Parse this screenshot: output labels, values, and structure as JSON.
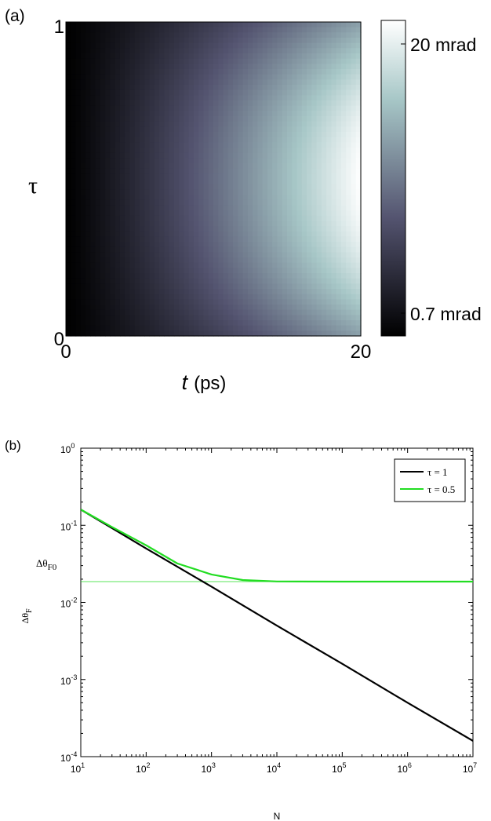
{
  "chart_data": [
    {
      "type": "heatmap",
      "panel_label": "(a)",
      "xlabel_var": "t",
      "xlabel_unit": "(ps)",
      "ylabel": "τ",
      "x_ticks": [
        "0",
        "20"
      ],
      "y_ticks": [
        "0",
        "1"
      ],
      "xlim": [
        0,
        20
      ],
      "ylim": [
        0,
        1
      ],
      "colorbar": {
        "max_label": "20 mrad",
        "min_label": "0.7 mrad",
        "range": [
          0.7,
          20
        ]
      },
      "colormap": "bone",
      "value_model": "Increases with t; maximum at τ = 0.5 and t = 20"
    },
    {
      "type": "line",
      "panel_label": "(b)",
      "xlabel": "N",
      "ylabel_main": "Δθ",
      "ylabel_sub": "F",
      "x_scale": "log",
      "y_scale": "log",
      "xlim": [
        10,
        10000000
      ],
      "ylim": [
        0.0001,
        1
      ],
      "x_tick_exponents": [
        "1",
        "2",
        "3",
        "4",
        "5",
        "6",
        "7"
      ],
      "y_tick_exponents": [
        "0",
        "-1",
        "-2",
        "-3",
        "-4"
      ],
      "tick_base": "10",
      "series": [
        {
          "name": "τ = 1",
          "color": "#000000",
          "x": [
            10,
            100,
            1000,
            10000,
            100000,
            1000000,
            10000000
          ],
          "y": [
            0.16,
            0.05,
            0.016,
            0.005,
            0.0016,
            0.0005,
            0.00016
          ]
        },
        {
          "name": "τ = 0.5",
          "color": "#22dd22",
          "x": [
            10,
            30,
            100,
            300,
            1000,
            3000,
            10000,
            100000,
            1000000,
            10000000
          ],
          "y": [
            0.16,
            0.095,
            0.055,
            0.032,
            0.023,
            0.0195,
            0.0187,
            0.0186,
            0.0186,
            0.0186
          ]
        }
      ],
      "reference_line": {
        "label_main": "Δθ",
        "label_sub": "F0",
        "y": 0.0186,
        "color": "#22dd22"
      },
      "legend_position": "top-right"
    }
  ]
}
